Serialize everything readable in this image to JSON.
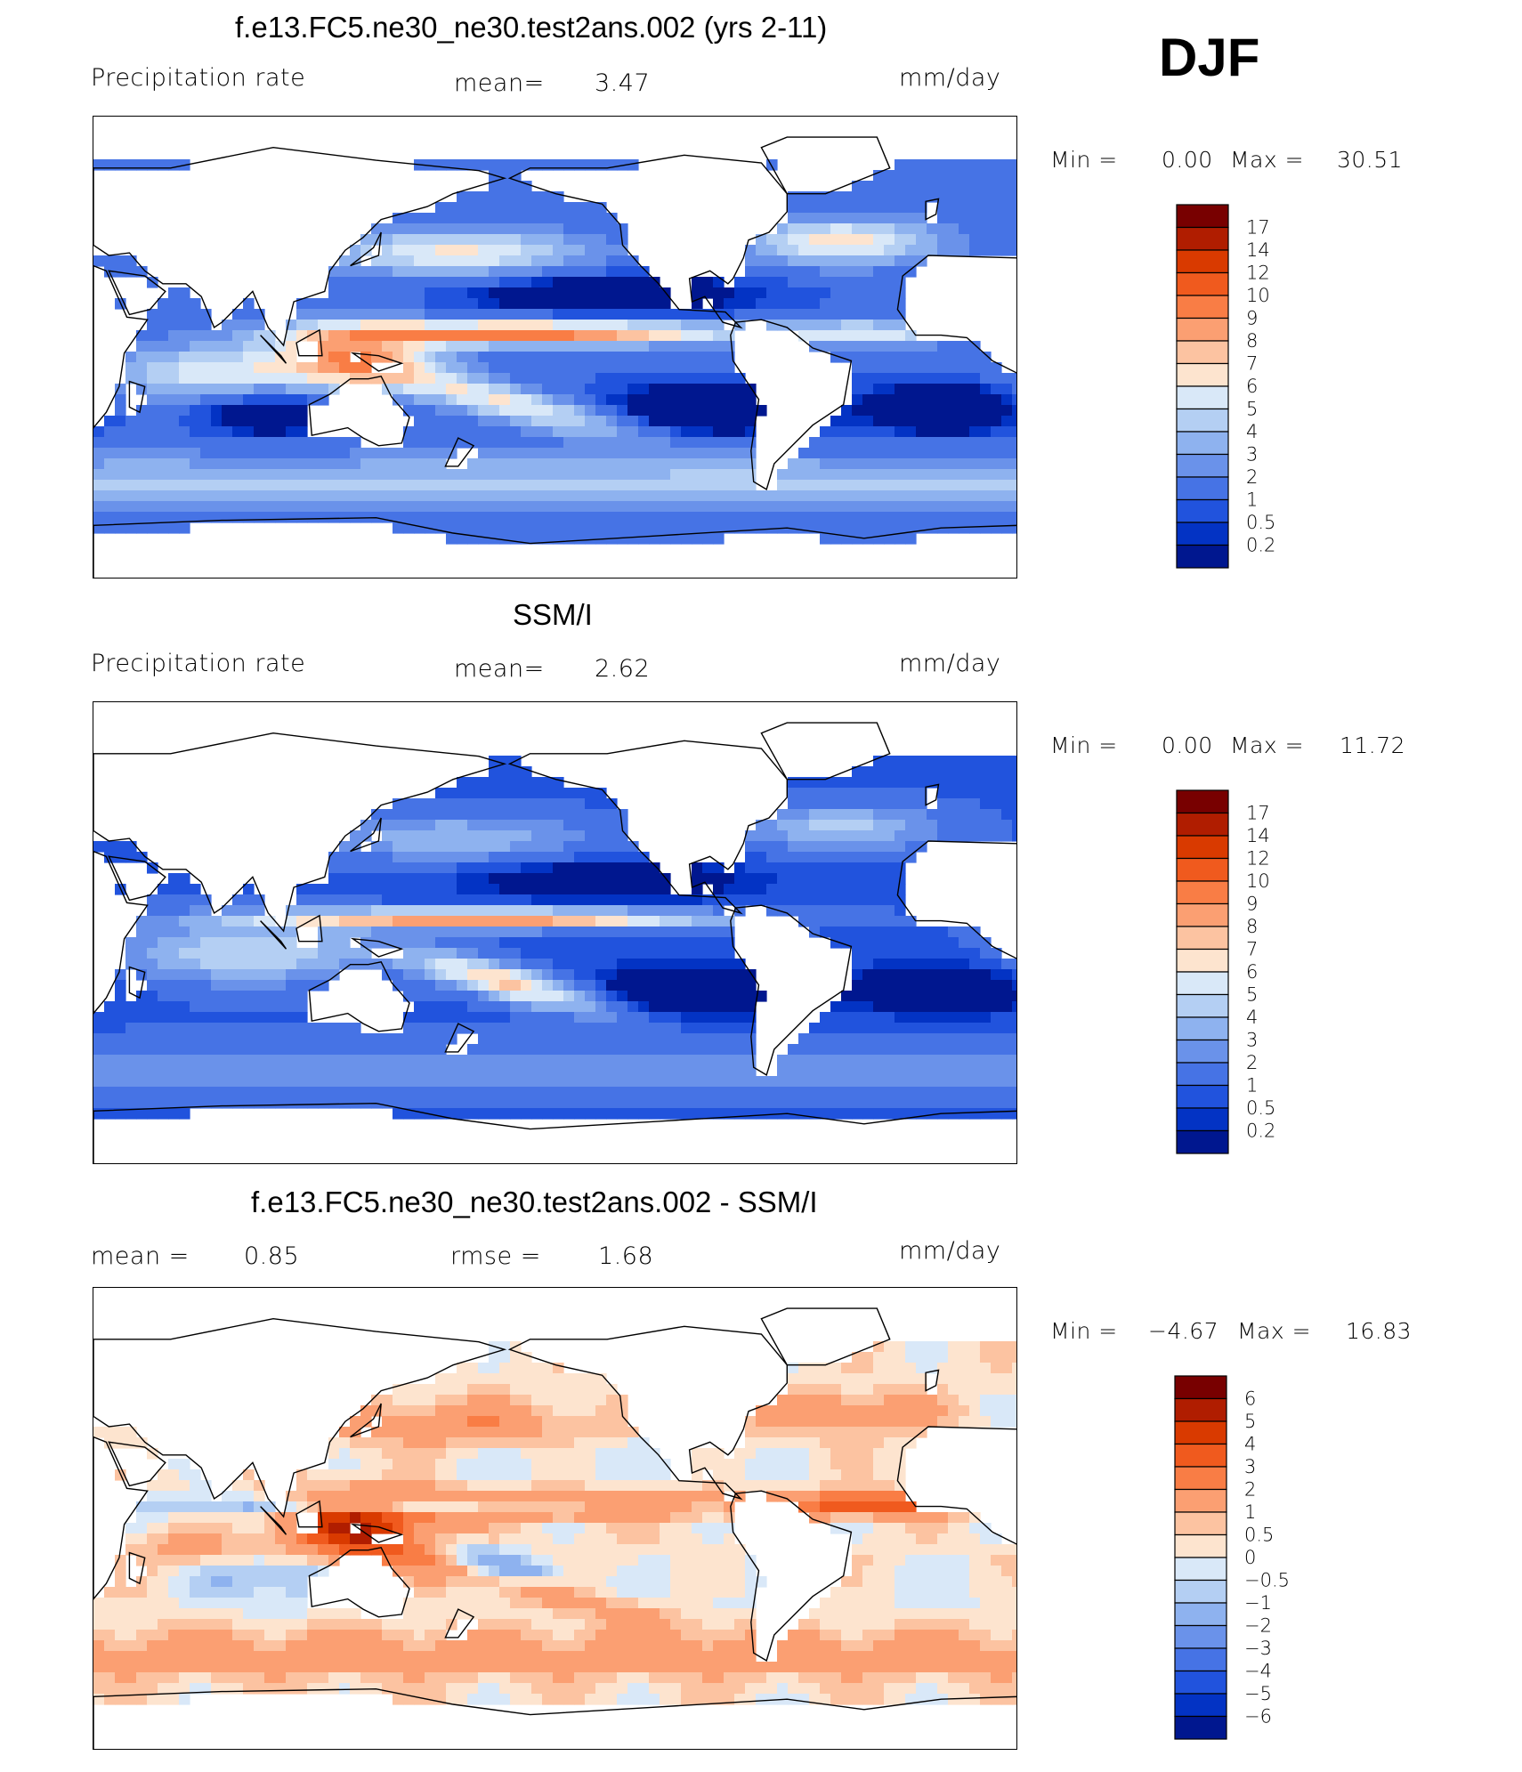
{
  "season": "DJF",
  "units": "mm/day",
  "panels": [
    {
      "title": "f.e13.FC5.ne30_ne30.test2ans.002 (yrs 2-11)",
      "variable": "Precipitation rate",
      "mean_label": "mean=",
      "mean_value": "3.47",
      "min_label": "Min =",
      "min_value": "0.00",
      "max_label": "Max =",
      "max_value": "30.51",
      "field": "model"
    },
    {
      "title": "SSM/I",
      "variable": "Precipitation rate",
      "mean_label": "mean=",
      "mean_value": "2.62",
      "min_label": "Min =",
      "min_value": "0.00",
      "max_label": "Max =",
      "max_value": "11.72",
      "field": "obs"
    },
    {
      "title": "f.e13.FC5.ne30_ne30.test2ans.002 - SSM/I",
      "mean_label": "mean =",
      "mean_value": "0.85",
      "rmse_label": "rmse =",
      "rmse_value": "1.68",
      "min_label": "Min =",
      "min_value": "−4.67",
      "max_label": "Max =",
      "max_value": "16.83",
      "field": "diff"
    }
  ],
  "colorbars": {
    "precip": {
      "labels": [
        "17",
        "14",
        "12",
        "10",
        "9",
        "8",
        "7",
        "6",
        "5",
        "4",
        "3",
        "2",
        "1",
        "0.5",
        "0.2"
      ],
      "colors": [
        "#780000",
        "#b01d00",
        "#d93a00",
        "#f05a1e",
        "#f97d45",
        "#fb9f72",
        "#fcc3a1",
        "#fde4cf",
        "#d9e8f8",
        "#b4cff3",
        "#8eb2ef",
        "#6a92ea",
        "#4673e5",
        "#2153dd",
        "#0333c4",
        "#00178f"
      ]
    },
    "diff": {
      "labels": [
        "6",
        "5",
        "4",
        "3",
        "2",
        "1",
        "0.5",
        "0",
        "−0.5",
        "−1",
        "−2",
        "−3",
        "−4",
        "−5",
        "−6"
      ],
      "colors": [
        "#780000",
        "#b01d00",
        "#d93a00",
        "#f05a1e",
        "#f97d45",
        "#fb9f72",
        "#fcc3a1",
        "#fde4cf",
        "#d9e8f8",
        "#b4cff3",
        "#8eb2ef",
        "#6a92ea",
        "#4673e5",
        "#2153dd",
        "#0333c4",
        "#00178f"
      ]
    }
  }
}
